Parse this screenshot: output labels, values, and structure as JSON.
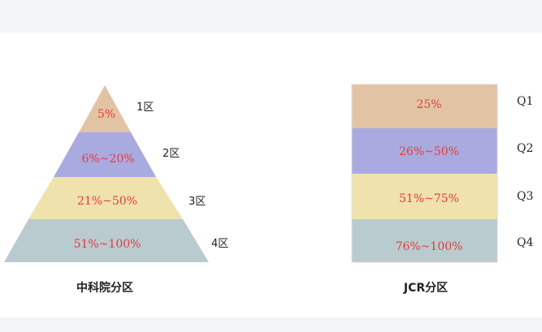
{
  "cas": {
    "caption": "中科院分区",
    "tiers": [
      {
        "range": "5%",
        "side_label": "1区",
        "color": "#e2c4a5"
      },
      {
        "range": "6%~20%",
        "side_label": "2区",
        "color": "#a9aadf"
      },
      {
        "range": "21%~50%",
        "side_label": "3区",
        "color": "#f0e2ad"
      },
      {
        "range": "51%~100%",
        "side_label": "4区",
        "color": "#b9cbcf"
      }
    ]
  },
  "jcr": {
    "caption": "JCR分区",
    "tiers": [
      {
        "range": "25%",
        "side_label": "Q1",
        "color": "#e2c4a5"
      },
      {
        "range": "26%~50%",
        "side_label": "Q2",
        "color": "#a9aadf"
      },
      {
        "range": "51%~75%",
        "side_label": "Q3",
        "color": "#f0e2ad"
      },
      {
        "range": "76%~100%",
        "side_label": "Q4",
        "color": "#b9cbcf"
      }
    ]
  }
}
